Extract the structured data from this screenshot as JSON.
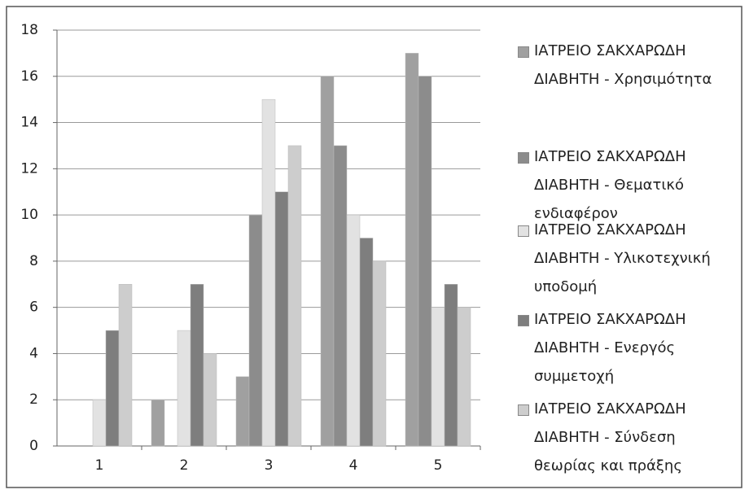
{
  "chart_data": {
    "type": "bar",
    "categories": [
      "1",
      "2",
      "3",
      "4",
      "5"
    ],
    "series": [
      {
        "name": "ΙΑΤΡΕΙΟ ΣΑΚΧΑΡΩΔΗ ΔΙΑΒΗΤΗ - Χρησιμότητα",
        "color": "#a0a0a0",
        "values": [
          0,
          2,
          3,
          16,
          17
        ]
      },
      {
        "name": "ΙΑΤΡΕΙΟ ΣΑΚΧΑΡΩΔΗ ΔΙΑΒΗΤΗ - Θεματικό ενδιαφέρον",
        "color": "#8c8c8c",
        "values": [
          0,
          0,
          10,
          13,
          16
        ]
      },
      {
        "name": "ΙΑΤΡΕΙΟ ΣΑΚΧΑΡΩΔΗ ΔΙΑΒΗΤΗ - Υλικοτεχνική υποδομή",
        "color": "#e2e2e2",
        "values": [
          2,
          5,
          15,
          10,
          6
        ]
      },
      {
        "name": "ΙΑΤΡΕΙΟ ΣΑΚΧΑΡΩΔΗ ΔΙΑΒΗΤΗ - Ενεργός συμμετοχή",
        "color": "#7e7e7e",
        "values": [
          5,
          7,
          11,
          9,
          7
        ]
      },
      {
        "name": "ΙΑΤΡΕΙΟ ΣΑΚΧΑΡΩΔΗ ΔΙΑΒΗΤΗ - Σύνδεση θεωρίας και πράξης",
        "color": "#cdcdcd",
        "values": [
          7,
          4,
          13,
          8,
          6
        ]
      }
    ],
    "ylim": [
      0,
      18
    ],
    "yticks": [
      0,
      2,
      4,
      6,
      8,
      10,
      12,
      14,
      16,
      18
    ],
    "grid": true,
    "legend": "right"
  }
}
